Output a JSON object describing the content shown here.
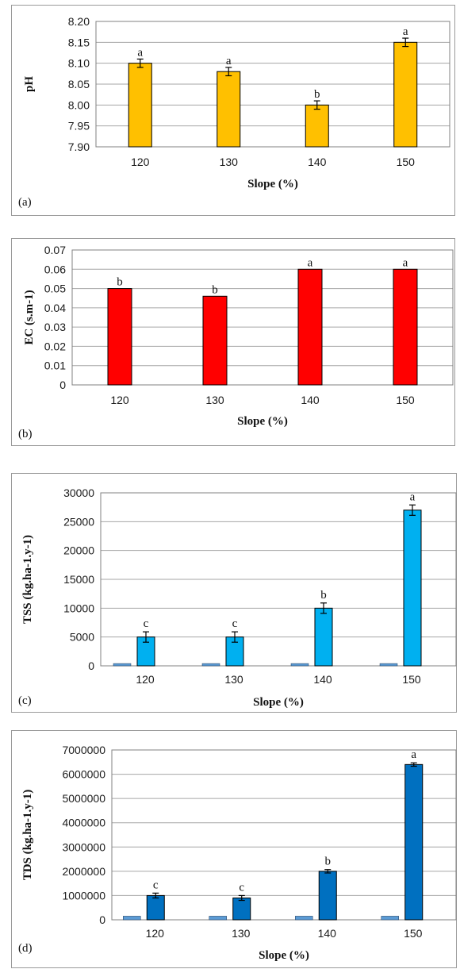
{
  "chart_data": [
    {
      "type": "bar",
      "panel_label": "(a)",
      "categories": [
        "120",
        "130",
        "140",
        "150"
      ],
      "series": [
        {
          "values": [
            8.1,
            8.08,
            8.0,
            8.15
          ],
          "errors": [
            0.01,
            0.01,
            0.01,
            0.01
          ],
          "color": "#FFC000"
        }
      ],
      "significance": [
        "a",
        "a",
        "b",
        "a"
      ],
      "xlabel": "Slope (%)",
      "ylabel": "pH",
      "ylim": [
        7.9,
        8.2
      ],
      "yticks": [
        "7.90",
        "7.95",
        "8.00",
        "8.05",
        "8.10",
        "8.15",
        "8.20"
      ],
      "grid": true
    },
    {
      "type": "bar",
      "panel_label": "(b)",
      "categories": [
        "120",
        "130",
        "140",
        "150"
      ],
      "series": [
        {
          "values": [
            0.05,
            0.046,
            0.06,
            0.06
          ],
          "color": "#FF0000"
        }
      ],
      "significance": [
        "b",
        "b",
        "a",
        "a"
      ],
      "xlabel": "Slope (%)",
      "ylabel": "EC (s.m-1)",
      "ylim": [
        0,
        0.07
      ],
      "yticks": [
        "0",
        "0.01",
        "0.02",
        "0.03",
        "0.04",
        "0.05",
        "0.06",
        "0.07"
      ],
      "grid": true
    },
    {
      "type": "bar",
      "panel_label": "(c)",
      "categories": [
        "120",
        "130",
        "140",
        "150"
      ],
      "series": [
        {
          "values": [
            400,
            400,
            400,
            400
          ],
          "color": "#5B9BD5"
        },
        {
          "values": [
            5000,
            5000,
            10000,
            27000
          ],
          "errors": [
            900,
            900,
            900,
            900
          ],
          "color": "#00B0F0"
        }
      ],
      "significance": [
        "c",
        "c",
        "b",
        "a"
      ],
      "xlabel": "Slope (%)",
      "ylabel": "TSS (kg.ha-1.y-1)",
      "ylim": [
        0,
        30000
      ],
      "yticks": [
        "0",
        "5000",
        "10000",
        "15000",
        "20000",
        "25000",
        "30000"
      ],
      "grid": true
    },
    {
      "type": "bar",
      "panel_label": "(d)",
      "categories": [
        "120",
        "130",
        "140",
        "150"
      ],
      "series": [
        {
          "values": [
            150000,
            150000,
            150000,
            150000
          ],
          "color": "#5B9BD5"
        },
        {
          "values": [
            1000000,
            900000,
            2000000,
            6400000
          ],
          "errors": [
            100000,
            100000,
            70000,
            70000
          ],
          "color": "#0070C0"
        }
      ],
      "significance": [
        "c",
        "c",
        "b",
        "a"
      ],
      "xlabel": "Slope (%)",
      "ylabel": "TDS (kg.ha-1.y-1)",
      "ylim": [
        0,
        7000000
      ],
      "yticks": [
        "0",
        "1000000",
        "2000000",
        "3000000",
        "4000000",
        "5000000",
        "6000000",
        "7000000"
      ],
      "grid": true
    }
  ]
}
